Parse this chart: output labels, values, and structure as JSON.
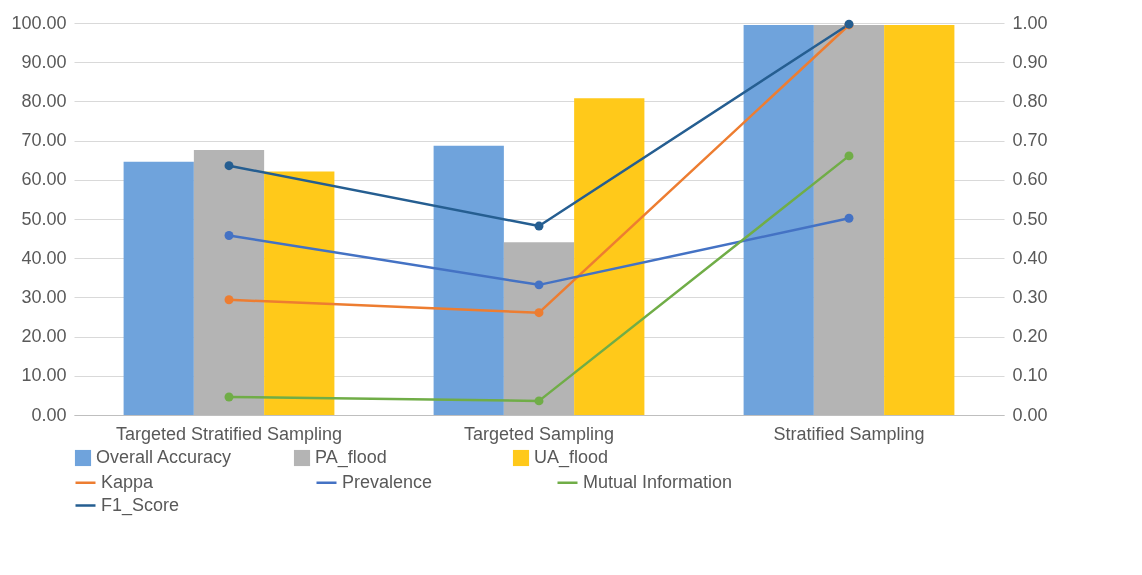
{
  "chart_data": {
    "type": "bar",
    "categories": [
      "Targeted Stratified Sampling",
      "Targeted Sampling",
      "Stratified Sampling"
    ],
    "series": [
      {
        "name": "Overall Accuracy",
        "color": "#6fa3dc",
        "values": [
          64.6,
          68.7,
          99.5
        ]
      },
      {
        "name": "PA_flood",
        "color": "#b4b4b4",
        "values": [
          67.6,
          44.1,
          99.5
        ]
      },
      {
        "name": "UA_flood",
        "color": "#ffc91a",
        "values": [
          62.1,
          80.8,
          99.5
        ]
      },
      {
        "name": "Kappa",
        "type": "line",
        "axis": "y2",
        "color": "#ed7d31",
        "values": [
          0.294,
          0.261,
          0.995
        ]
      },
      {
        "name": "Prevalence",
        "type": "line",
        "axis": "y2",
        "color": "#4472c4",
        "values": [
          0.458,
          0.332,
          0.502
        ]
      },
      {
        "name": "Mutual Information",
        "type": "line",
        "axis": "y2",
        "color": "#70ad47",
        "values": [
          0.046,
          0.036,
          0.661
        ]
      },
      {
        "name": "F1_Score",
        "type": "line",
        "axis": "y2",
        "color": "#255e91",
        "values": [
          0.636,
          0.482,
          0.997
        ]
      }
    ],
    "ylim": [
      0,
      100
    ],
    "yticks": [
      {
        "value": 0,
        "label": "0.00"
      },
      {
        "value": 10,
        "label": "10.00"
      },
      {
        "value": 20,
        "label": "20.00"
      },
      {
        "value": 30,
        "label": "30.00"
      },
      {
        "value": 40,
        "label": "40.00"
      },
      {
        "value": 50,
        "label": "50.00"
      },
      {
        "value": 60,
        "label": "60.00"
      },
      {
        "value": 70,
        "label": "70.00"
      },
      {
        "value": 80,
        "label": "80.00"
      },
      {
        "value": 90,
        "label": "90.00"
      },
      {
        "value": 100,
        "label": "100.00"
      }
    ],
    "y2lim": [
      0,
      1
    ],
    "y2ticks": [
      {
        "value": 0,
        "label": "0.00"
      },
      {
        "value": 0.1,
        "label": "0.10"
      },
      {
        "value": 0.2,
        "label": "0.20"
      },
      {
        "value": 0.3,
        "label": "0.30"
      },
      {
        "value": 0.4,
        "label": "0.40"
      },
      {
        "value": 0.5,
        "label": "0.50"
      },
      {
        "value": 0.6,
        "label": "0.60"
      },
      {
        "value": 0.7,
        "label": "0.70"
      },
      {
        "value": 0.8,
        "label": "0.80"
      },
      {
        "value": 0.9,
        "label": "0.90"
      },
      {
        "value": 1,
        "label": "1.00"
      }
    ],
    "grid": "y",
    "legend": "bottom",
    "marker": "circle",
    "line_style": "solid"
  }
}
